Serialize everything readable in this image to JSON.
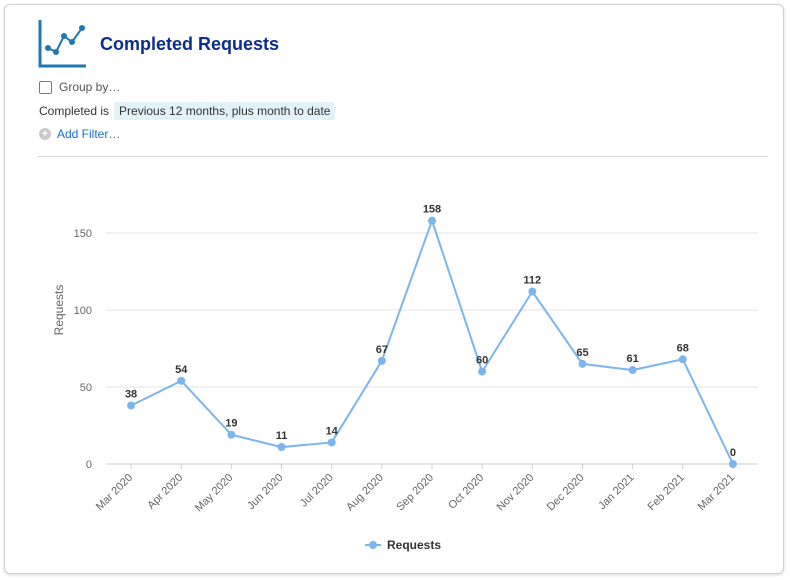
{
  "header": {
    "title": "Completed Requests",
    "icon": "line-chart-icon"
  },
  "controls": {
    "group_by_label": "Group by…",
    "group_by_checked": false,
    "filter_field": "Completed is",
    "filter_value": "Previous 12 months, plus month to date",
    "add_filter_label": "Add Filter…"
  },
  "colors": {
    "title": "#0b2e8a",
    "series": "#7cb5ec",
    "link": "#1b6ec2",
    "pill_bg": "#e3f1f8"
  },
  "chart_data": {
    "type": "line",
    "categories": [
      "Mar 2020",
      "Apr 2020",
      "May 2020",
      "Jun 2020",
      "Jul 2020",
      "Aug 2020",
      "Sep 2020",
      "Oct 2020",
      "Nov 2020",
      "Dec 2020",
      "Jan 2021",
      "Feb 2021",
      "Mar 2021"
    ],
    "series": [
      {
        "name": "Requests",
        "values": [
          38,
          54,
          19,
          11,
          14,
          67,
          158,
          60,
          112,
          65,
          61,
          68,
          0
        ]
      }
    ],
    "title": "",
    "xlabel": "",
    "ylabel": "Requests",
    "ylim": [
      0,
      150
    ],
    "yticks": [
      0,
      50,
      100,
      150
    ],
    "grid": true,
    "data_labels": true,
    "legend": "bottom-center"
  }
}
